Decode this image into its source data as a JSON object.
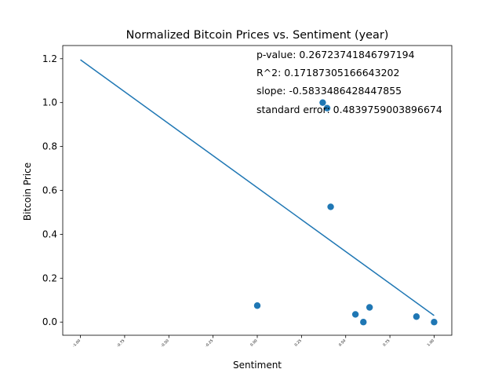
{
  "chart_data": {
    "type": "scatter",
    "title": "Normalized Bitcoin Prices vs. Sentiment (year)",
    "xlabel": "Sentiment",
    "ylabel": "Bitcoin Price",
    "xlim": [
      -1.1,
      1.1
    ],
    "ylim": [
      -0.06,
      1.26
    ],
    "grid": false,
    "x_ticks": [
      -1.0,
      -0.75,
      -0.5,
      -0.25,
      0.0,
      0.25,
      0.5,
      0.75,
      1.0
    ],
    "x_tick_labels": [
      "-1.00",
      "-0.75",
      "-0.50",
      "-0.25",
      "0.00",
      "0.25",
      "0.50",
      "0.75",
      "1.00"
    ],
    "y_ticks": [
      0.0,
      0.2,
      0.4,
      0.6,
      0.8,
      1.0,
      1.2
    ],
    "y_tick_labels": [
      "0.0",
      "0.2",
      "0.4",
      "0.6",
      "0.8",
      "1.0",
      "1.2"
    ],
    "series": [
      {
        "kind": "scatter",
        "color": "#1f77b4",
        "points": [
          {
            "x": 0.0,
            "y": 0.075
          },
          {
            "x": 0.37,
            "y": 1.0
          },
          {
            "x": 0.395,
            "y": 0.975
          },
          {
            "x": 0.415,
            "y": 0.525
          },
          {
            "x": 0.555,
            "y": 0.035
          },
          {
            "x": 0.6,
            "y": 0.0
          },
          {
            "x": 0.635,
            "y": 0.067
          },
          {
            "x": 0.9,
            "y": 0.025
          },
          {
            "x": 1.0,
            "y": 0.0
          }
        ]
      },
      {
        "kind": "line",
        "color": "#1f77b4",
        "points": [
          {
            "x": -1.0,
            "y": 1.195
          },
          {
            "x": 1.0,
            "y": 0.03
          }
        ]
      }
    ],
    "annotations": [
      "p-value: 0.26723741846797194",
      "R^2: 0.17187305166643202",
      "slope: -0.5833486428447855",
      "standard error: 0.4839759003896674"
    ]
  }
}
